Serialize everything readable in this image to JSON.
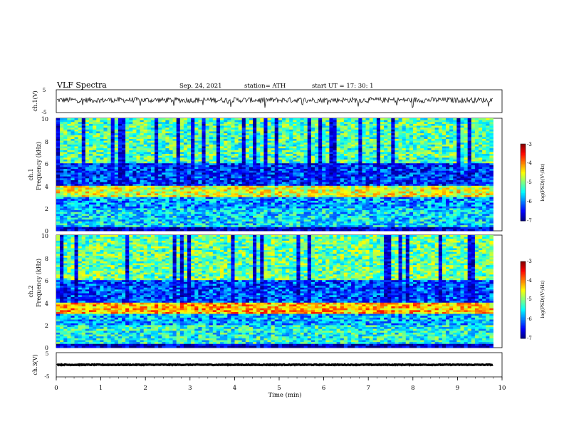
{
  "header": {
    "title": "VLF  Spectra",
    "date": "Sep. 24, 2021",
    "station": "station= ATH",
    "start": "start  UT  =    17: 30: 1"
  },
  "chart_data": [
    {
      "type": "line",
      "name": "ch1-waveform",
      "ylabel": "ch.1(V)",
      "ylim": [
        -5,
        5
      ],
      "yticks": [
        "5",
        "-5"
      ],
      "x_range_min": [
        0,
        9.8
      ],
      "baseline_v": 0.5,
      "noise_v": 1.2,
      "spikes_down_v": -3
    },
    {
      "type": "heatmap",
      "name": "ch1-spectrogram",
      "ylabel_channel": "ch.1",
      "ylabel": "Frequency  (kHz)",
      "ylim": [
        0,
        10
      ],
      "yticks": [
        "10",
        "8",
        "6",
        "4",
        "2",
        "0"
      ],
      "bands_khz": [
        {
          "range": [
            0,
            0.4
          ],
          "log_psd": -6.8
        },
        {
          "range": [
            0.4,
            2.0
          ],
          "log_psd": -5.6
        },
        {
          "range": [
            2.0,
            3.0
          ],
          "log_psd": -5.9
        },
        {
          "range": [
            3.0,
            4.0
          ],
          "log_psd": -4.6
        },
        {
          "range": [
            4.0,
            6.0
          ],
          "log_psd": -6.3
        },
        {
          "range": [
            6.0,
            10.0
          ],
          "log_psd": -5.2
        }
      ],
      "colorbar": {
        "label": "log(PSD)(V²/Hz)",
        "ticks": [
          "-3",
          "-4",
          "-5",
          "-6",
          "-7"
        ],
        "range": [
          -7,
          -3
        ]
      }
    },
    {
      "type": "heatmap",
      "name": "ch2-spectrogram",
      "ylabel_channel": "ch.2",
      "ylabel": "Frequency  (kHz)",
      "ylim": [
        0,
        10
      ],
      "yticks": [
        "10",
        "8",
        "6",
        "4",
        "2",
        "0"
      ],
      "bands_khz": [
        {
          "range": [
            0,
            0.4
          ],
          "log_psd": -6.8
        },
        {
          "range": [
            0.4,
            2.0
          ],
          "log_psd": -5.4
        },
        {
          "range": [
            2.0,
            3.0
          ],
          "log_psd": -5.8
        },
        {
          "range": [
            3.0,
            4.0
          ],
          "log_psd": -4.2
        },
        {
          "range": [
            4.0,
            6.0
          ],
          "log_psd": -6.2
        },
        {
          "range": [
            6.0,
            10.0
          ],
          "log_psd": -5.1
        }
      ],
      "colorbar": {
        "label": "log(PSD)(V²/Hz)",
        "ticks": [
          "-3",
          "-4",
          "-5",
          "-6",
          "-7"
        ],
        "range": [
          -7,
          -3
        ]
      }
    },
    {
      "type": "line",
      "name": "ch3-waveform",
      "ylabel": "ch.3(V)",
      "ylim": [
        -5,
        5
      ],
      "yticks": [
        "5",
        "0",
        "-5"
      ],
      "x_range_min": [
        0,
        9.8
      ],
      "baseline_v": 0.0,
      "noise_v": 0.15
    }
  ],
  "xaxis": {
    "label": "Time  (min)",
    "ticks": [
      "0",
      "1",
      "2",
      "3",
      "4",
      "5",
      "6",
      "7",
      "8",
      "9",
      "10"
    ],
    "range": [
      0,
      10
    ]
  }
}
